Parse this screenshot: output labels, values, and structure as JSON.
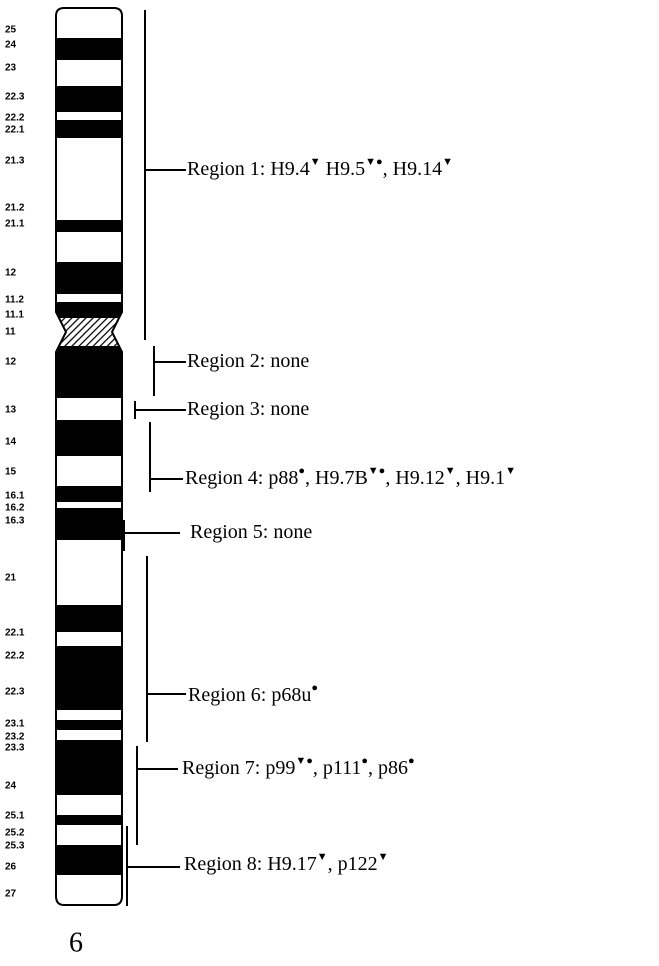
{
  "chromosome": "6",
  "bands": [
    "25",
    "24",
    "23",
    "22.3",
    "22.2",
    "22.1",
    "21.3",
    "21.2",
    "21.1",
    "12",
    "11.2",
    "11.1",
    "11",
    "12",
    "13",
    "14",
    "15",
    "16.1",
    "16.2",
    "16.3",
    "21",
    "22.1",
    "22.2",
    "22.3",
    "23.1",
    "23.2",
    "23.3",
    "24",
    "25.1",
    "25.2",
    "25.3",
    "26",
    "27"
  ],
  "regions": [
    {
      "segments": [
        {
          "text": "Region 1: H9.4"
        },
        {
          "sup": "▼"
        },
        {
          "text": " H9.5"
        },
        {
          "sup": "▼●"
        },
        {
          "text": ", H9.14"
        },
        {
          "sup": "▼"
        }
      ]
    },
    {
      "segments": [
        {
          "text": "Region 2: none"
        }
      ]
    },
    {
      "segments": [
        {
          "text": "Region 3: none"
        }
      ]
    },
    {
      "segments": [
        {
          "text": "Region 4: p88"
        },
        {
          "sup": "●"
        },
        {
          "text": ", H9.7B"
        },
        {
          "sup": "▼●"
        },
        {
          "text": ", H9.12"
        },
        {
          "sup": "▼"
        },
        {
          "text": ", H9.1"
        },
        {
          "sup": "▼"
        }
      ]
    },
    {
      "segments": [
        {
          "text": "Region 5:  none"
        }
      ]
    },
    {
      "segments": [
        {
          "text": "Region 6: p68u"
        },
        {
          "sup": "●"
        }
      ]
    },
    {
      "segments": [
        {
          "text": "Region 7: p99"
        },
        {
          "sup": "▼●"
        },
        {
          "text": ", p111"
        },
        {
          "sup": "●"
        },
        {
          "text": ", p86"
        },
        {
          "sup": "●"
        }
      ]
    },
    {
      "segments": [
        {
          "text": "Region 8: H9.17"
        },
        {
          "sup": "▼"
        },
        {
          "text": ", p122"
        },
        {
          "sup": "▼"
        }
      ]
    }
  ]
}
